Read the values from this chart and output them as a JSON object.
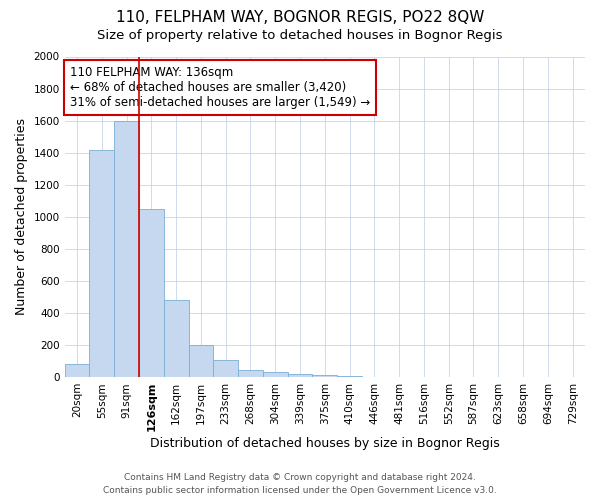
{
  "title": "110, FELPHAM WAY, BOGNOR REGIS, PO22 8QW",
  "subtitle": "Size of property relative to detached houses in Bognor Regis",
  "xlabel": "Distribution of detached houses by size in Bognor Regis",
  "ylabel": "Number of detached properties",
  "categories": [
    "20sqm",
    "55sqm",
    "91sqm",
    "126sqm",
    "162sqm",
    "197sqm",
    "233sqm",
    "268sqm",
    "304sqm",
    "339sqm",
    "375sqm",
    "410sqm",
    "446sqm",
    "481sqm",
    "516sqm",
    "552sqm",
    "587sqm",
    "623sqm",
    "658sqm",
    "694sqm",
    "729sqm"
  ],
  "values": [
    80,
    1420,
    1600,
    1050,
    480,
    200,
    105,
    45,
    30,
    20,
    15,
    10,
    0,
    0,
    0,
    0,
    0,
    0,
    0,
    0,
    0
  ],
  "bar_color": "#c5d8ef",
  "bar_edge_color": "#7bafd4",
  "vline_color": "#cc0000",
  "annotation_line1": "110 FELPHAM WAY: 136sqm",
  "annotation_line2": "← 68% of detached houses are smaller (3,420)",
  "annotation_line3": "31% of semi-detached houses are larger (1,549) →",
  "annotation_box_color": "#ffffff",
  "annotation_box_edge_color": "#cc0000",
  "highlighted_tick_idx": 3,
  "ylim": [
    0,
    2000
  ],
  "yticks": [
    0,
    200,
    400,
    600,
    800,
    1000,
    1200,
    1400,
    1600,
    1800,
    2000
  ],
  "footer_line1": "Contains HM Land Registry data © Crown copyright and database right 2024.",
  "footer_line2": "Contains public sector information licensed under the Open Government Licence v3.0.",
  "bg_color": "#ffffff",
  "grid_color": "#c8d4e8",
  "title_fontsize": 11,
  "subtitle_fontsize": 9.5,
  "axis_label_fontsize": 9,
  "tick_fontsize": 7.5,
  "annotation_fontsize": 8.5,
  "footer_fontsize": 6.5
}
